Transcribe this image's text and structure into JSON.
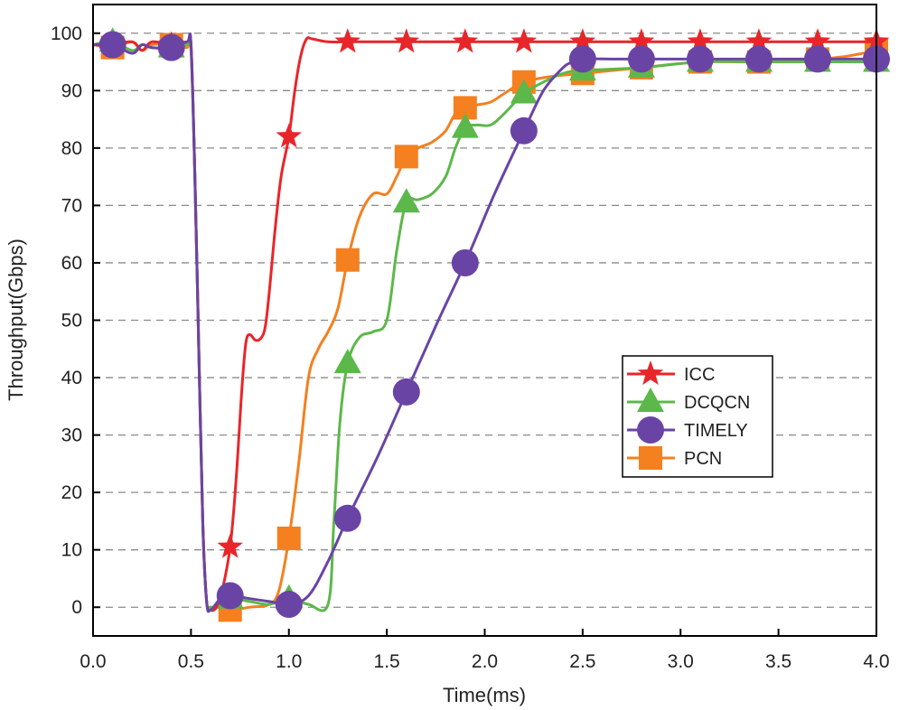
{
  "chart_data": {
    "type": "line",
    "title": "",
    "xlabel": "Time(ms)",
    "ylabel": "Throughput(Gbps)",
    "xlim": [
      0.0,
      4.0
    ],
    "ylim": [
      -5,
      105
    ],
    "xticks": [
      0.0,
      0.5,
      1.0,
      1.5,
      2.0,
      2.5,
      3.0,
      3.5,
      4.0
    ],
    "xtick_labels": [
      "0.0",
      "0.5",
      "1.0",
      "1.5",
      "2.0",
      "2.5",
      "3.0",
      "3.5",
      "4.0"
    ],
    "yticks": [
      0,
      10,
      20,
      30,
      40,
      50,
      60,
      70,
      80,
      90,
      100
    ],
    "ytick_labels": [
      "0",
      "10",
      "20",
      "30",
      "40",
      "50",
      "60",
      "70",
      "80",
      "90",
      "100"
    ],
    "grid": "horizontal dashed",
    "legend_position": "right-middle",
    "series": [
      {
        "name": "ICC",
        "color": "#e8262a",
        "marker": "star",
        "x": [
          0.1,
          0.4,
          0.7,
          1.0,
          1.3,
          1.6,
          1.9,
          2.2,
          2.5,
          2.8,
          3.1,
          3.4,
          3.7,
          4.0
        ],
        "y": [
          98,
          98,
          10.5,
          82,
          98.5,
          98.5,
          98.5,
          98.5,
          98.5,
          98.5,
          98.5,
          98.5,
          98.5,
          98.5
        ],
        "curve_x": [
          0.0,
          0.1,
          0.2,
          0.25,
          0.3,
          0.4,
          0.48,
          0.5,
          0.52,
          0.54,
          0.56,
          0.58,
          0.6,
          0.63,
          0.66,
          0.7,
          0.73,
          0.76,
          0.78,
          0.8,
          0.83,
          0.86,
          0.88,
          0.9,
          0.93,
          0.96,
          1.0,
          1.03,
          1.06,
          1.09,
          1.12,
          1.2,
          1.3,
          1.6,
          2.0,
          2.5,
          3.0,
          3.5,
          4.0
        ],
        "curve_y": [
          98,
          98,
          98.5,
          97,
          98.5,
          98,
          98.5,
          98,
          75,
          45,
          15,
          1,
          -0.5,
          0,
          3,
          10.5,
          22,
          38,
          46,
          47.5,
          46.5,
          47,
          49,
          55,
          66,
          75,
          82,
          90,
          96,
          99,
          99,
          98.5,
          98.5,
          98.5,
          98.5,
          98.5,
          98.5,
          98.5,
          98.5
        ]
      },
      {
        "name": "DCQCN",
        "color": "#5cb84a",
        "marker": "triangle",
        "x": [
          0.1,
          0.4,
          0.7,
          1.0,
          1.3,
          1.6,
          1.9,
          2.2,
          2.5,
          2.8,
          3.1,
          3.4,
          3.7,
          4.0
        ],
        "y": [
          98.5,
          97.5,
          1.5,
          1.5,
          42.5,
          70.5,
          83.5,
          89.5,
          93.5,
          94,
          95,
          95,
          95,
          95
        ],
        "curve_x": [
          0.0,
          0.1,
          0.2,
          0.25,
          0.3,
          0.4,
          0.48,
          0.5,
          0.52,
          0.54,
          0.56,
          0.58,
          0.6,
          0.65,
          0.7,
          0.8,
          0.9,
          1.0,
          1.1,
          1.2,
          1.23,
          1.26,
          1.3,
          1.36,
          1.43,
          1.5,
          1.55,
          1.6,
          1.66,
          1.73,
          1.8,
          1.85,
          1.9,
          1.96,
          2.03,
          2.1,
          2.2,
          2.3,
          2.4,
          2.5,
          2.8,
          3.1,
          3.4,
          3.7,
          4.0
        ],
        "curve_y": [
          98,
          98.5,
          97,
          98,
          97.5,
          97.5,
          98,
          97,
          75,
          45,
          15,
          1,
          0,
          0.5,
          1.5,
          1,
          0.5,
          1.5,
          0.5,
          0.5,
          15,
          32,
          42.5,
          47,
          48,
          50,
          62,
          70.5,
          71,
          72,
          75,
          80,
          83.5,
          84,
          84,
          86,
          89.5,
          91.5,
          93,
          93.5,
          94,
          95,
          95,
          95,
          95
        ]
      },
      {
        "name": "TIMELY",
        "color": "#6a44a5",
        "marker": "circle",
        "x": [
          0.1,
          0.4,
          0.7,
          1.0,
          1.3,
          1.6,
          1.9,
          2.2,
          2.5,
          2.8,
          3.1,
          3.4,
          3.7,
          4.0
        ],
        "y": [
          98,
          97.5,
          2,
          0.5,
          15.5,
          37.5,
          60,
          83,
          95.5,
          95.5,
          95.5,
          95.5,
          95.5,
          95.5
        ],
        "curve_x": [
          0.0,
          0.1,
          0.2,
          0.25,
          0.3,
          0.4,
          0.48,
          0.5,
          0.52,
          0.54,
          0.56,
          0.58,
          0.6,
          0.65,
          0.7,
          0.8,
          0.9,
          1.0,
          1.1,
          1.2,
          1.3,
          1.45,
          1.6,
          1.75,
          1.9,
          2.05,
          2.2,
          2.3,
          2.4,
          2.45,
          2.5,
          2.7,
          3.0,
          3.5,
          4.0
        ],
        "curve_y": [
          98,
          98,
          96.5,
          98,
          97.5,
          97.5,
          98.5,
          98,
          75,
          45,
          15,
          1,
          -0.5,
          1.5,
          2,
          1.5,
          1,
          0.5,
          2,
          8,
          15.5,
          26,
          37.5,
          49,
          60,
          72,
          83,
          90,
          94,
          95,
          95.5,
          95.5,
          95.5,
          95.5,
          95.5
        ]
      },
      {
        "name": "PCN",
        "color": "#f4801f",
        "marker": "square",
        "x": [
          0.1,
          0.4,
          0.7,
          1.0,
          1.3,
          1.6,
          1.9,
          2.2,
          2.5,
          2.8,
          3.1,
          3.4,
          3.7,
          4.0
        ],
        "y": [
          97.5,
          98,
          -0.5,
          12,
          60.5,
          78.5,
          87,
          91.5,
          93,
          94,
          95,
          95,
          95.5,
          97
        ],
        "curve_x": [
          0.0,
          0.1,
          0.2,
          0.25,
          0.3,
          0.4,
          0.48,
          0.5,
          0.52,
          0.54,
          0.56,
          0.58,
          0.6,
          0.65,
          0.7,
          0.8,
          0.9,
          0.95,
          1.0,
          1.05,
          1.1,
          1.15,
          1.2,
          1.25,
          1.3,
          1.36,
          1.43,
          1.5,
          1.55,
          1.6,
          1.66,
          1.73,
          1.8,
          1.85,
          1.9,
          1.96,
          2.03,
          2.1,
          2.2,
          2.35,
          2.5,
          2.8,
          3.1,
          3.4,
          3.7,
          3.85,
          4.0
        ],
        "curve_y": [
          98,
          97.5,
          98.5,
          97,
          98,
          98,
          97.5,
          98,
          75,
          45,
          15,
          1,
          0,
          0,
          -0.5,
          0,
          0.5,
          3,
          12,
          25,
          40,
          45,
          48,
          52,
          60.5,
          68,
          72,
          72,
          75,
          78.5,
          80,
          81,
          83,
          86,
          87,
          87.5,
          88,
          89.5,
          91.5,
          92.5,
          93,
          94,
          95,
          95,
          95.5,
          96,
          97
        ]
      }
    ]
  }
}
